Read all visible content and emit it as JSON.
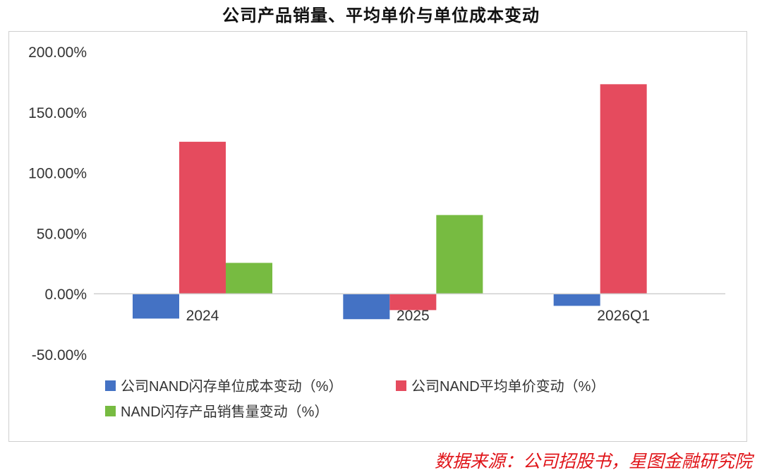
{
  "title": "公司产品销量、平均单价与单位成本变动",
  "source": "数据来源：公司招股书，星图金融研究院",
  "chart_data": {
    "type": "bar",
    "categories": [
      "2024",
      "2025",
      "2026Q1"
    ],
    "series": [
      {
        "name": "公司NAND闪存单位成本变动（%）",
        "color": "#4472c4",
        "values": [
          -20.5,
          -21.0,
          -10.0
        ]
      },
      {
        "name": "公司NAND平均单价变动（%）",
        "color": "#e54b5e",
        "values": [
          125.5,
          -13.5,
          173.0
        ]
      },
      {
        "name": "NAND闪存产品销售量变动（%）",
        "color": "#77bb41",
        "values": [
          25.5,
          65.0,
          null
        ]
      }
    ],
    "ylim": [
      -50,
      200
    ],
    "yticks": [
      "200.00%",
      "150.00%",
      "100.00%",
      "50.00%",
      "0.00%",
      "-50.00%"
    ],
    "ytick_values": [
      200,
      150,
      100,
      50,
      0,
      -50
    ],
    "grid": false,
    "legend_position": "bottom-left"
  }
}
